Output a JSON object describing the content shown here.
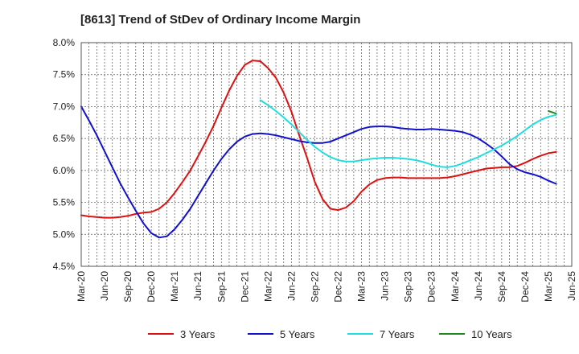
{
  "chart_data": {
    "type": "line",
    "title": "[8613]  Trend of StDev of Ordinary Income Margin",
    "xlabel": "",
    "ylabel": "",
    "x_ticks": [
      "Mar-20",
      "Jun-20",
      "Sep-20",
      "Dec-20",
      "Mar-21",
      "Jun-21",
      "Sep-21",
      "Dec-21",
      "Mar-22",
      "Jun-22",
      "Sep-22",
      "Dec-22",
      "Mar-23",
      "Jun-23",
      "Sep-23",
      "Dec-23",
      "Mar-24",
      "Jun-24",
      "Sep-24",
      "Dec-24",
      "Mar-25",
      "Jun-25"
    ],
    "y_ticks": [
      "4.5%",
      "5.0%",
      "5.5%",
      "6.0%",
      "6.5%",
      "7.0%",
      "7.5%",
      "8.0%"
    ],
    "ylim": [
      4.5,
      8.0
    ],
    "grid": true,
    "legend_position": "bottom",
    "series": [
      {
        "name": "3 Years",
        "color": "#dd1111",
        "points": [
          [
            "Mar-20",
            5.3
          ],
          [
            "Apr-20",
            5.28
          ],
          [
            "May-20",
            5.27
          ],
          [
            "Jun-20",
            5.26
          ],
          [
            "Jul-20",
            5.26
          ],
          [
            "Aug-20",
            5.27
          ],
          [
            "Sep-20",
            5.29
          ],
          [
            "Oct-20",
            5.32
          ],
          [
            "Nov-20",
            5.34
          ],
          [
            "Dec-20",
            5.35
          ],
          [
            "Jan-21",
            5.4
          ],
          [
            "Feb-21",
            5.5
          ],
          [
            "Mar-21",
            5.65
          ],
          [
            "Apr-21",
            5.82
          ],
          [
            "May-21",
            6.0
          ],
          [
            "Jun-21",
            6.22
          ],
          [
            "Jul-21",
            6.45
          ],
          [
            "Aug-21",
            6.7
          ],
          [
            "Sep-21",
            6.98
          ],
          [
            "Oct-21",
            7.25
          ],
          [
            "Nov-21",
            7.48
          ],
          [
            "Dec-21",
            7.65
          ],
          [
            "Jan-22",
            7.72
          ],
          [
            "Feb-22",
            7.71
          ],
          [
            "Mar-22",
            7.6
          ],
          [
            "Apr-22",
            7.45
          ],
          [
            "May-22",
            7.22
          ],
          [
            "Jun-22",
            6.92
          ],
          [
            "Jul-22",
            6.55
          ],
          [
            "Aug-22",
            6.2
          ],
          [
            "Sep-22",
            5.82
          ],
          [
            "Oct-22",
            5.55
          ],
          [
            "Nov-22",
            5.4
          ],
          [
            "Dec-22",
            5.38
          ],
          [
            "Jan-23",
            5.42
          ],
          [
            "Feb-23",
            5.52
          ],
          [
            "Mar-23",
            5.67
          ],
          [
            "Apr-23",
            5.78
          ],
          [
            "May-23",
            5.85
          ],
          [
            "Jun-23",
            5.88
          ],
          [
            "Jul-23",
            5.89
          ],
          [
            "Aug-23",
            5.89
          ],
          [
            "Sep-23",
            5.88
          ],
          [
            "Oct-23",
            5.88
          ],
          [
            "Nov-23",
            5.88
          ],
          [
            "Dec-23",
            5.88
          ],
          [
            "Jan-24",
            5.88
          ],
          [
            "Feb-24",
            5.89
          ],
          [
            "Mar-24",
            5.91
          ],
          [
            "Apr-24",
            5.94
          ],
          [
            "May-24",
            5.97
          ],
          [
            "Jun-24",
            6.0
          ],
          [
            "Jul-24",
            6.03
          ],
          [
            "Aug-24",
            6.04
          ],
          [
            "Sep-24",
            6.05
          ],
          [
            "Oct-24",
            6.05
          ],
          [
            "Nov-24",
            6.07
          ],
          [
            "Dec-24",
            6.12
          ],
          [
            "Jan-25",
            6.18
          ],
          [
            "Feb-25",
            6.23
          ],
          [
            "Mar-25",
            6.27
          ],
          [
            "Apr-25",
            6.29
          ]
        ]
      },
      {
        "name": "5 Years",
        "color": "#1111cc",
        "points": [
          [
            "Mar-20",
            7.0
          ],
          [
            "Apr-20",
            6.78
          ],
          [
            "May-20",
            6.55
          ],
          [
            "Jun-20",
            6.3
          ],
          [
            "Jul-20",
            6.05
          ],
          [
            "Aug-20",
            5.8
          ],
          [
            "Sep-20",
            5.58
          ],
          [
            "Oct-20",
            5.37
          ],
          [
            "Nov-20",
            5.17
          ],
          [
            "Dec-20",
            5.02
          ],
          [
            "Jan-21",
            4.95
          ],
          [
            "Feb-21",
            4.97
          ],
          [
            "Mar-21",
            5.08
          ],
          [
            "Apr-21",
            5.23
          ],
          [
            "May-21",
            5.4
          ],
          [
            "Jun-21",
            5.6
          ],
          [
            "Jul-21",
            5.8
          ],
          [
            "Aug-21",
            6.0
          ],
          [
            "Sep-21",
            6.18
          ],
          [
            "Oct-21",
            6.33
          ],
          [
            "Nov-21",
            6.45
          ],
          [
            "Dec-21",
            6.53
          ],
          [
            "Jan-22",
            6.57
          ],
          [
            "Feb-22",
            6.58
          ],
          [
            "Mar-22",
            6.57
          ],
          [
            "Apr-22",
            6.55
          ],
          [
            "May-22",
            6.52
          ],
          [
            "Jun-22",
            6.49
          ],
          [
            "Jul-22",
            6.46
          ],
          [
            "Aug-22",
            6.44
          ],
          [
            "Sep-22",
            6.43
          ],
          [
            "Oct-22",
            6.43
          ],
          [
            "Nov-22",
            6.45
          ],
          [
            "Dec-22",
            6.5
          ],
          [
            "Jan-23",
            6.55
          ],
          [
            "Feb-23",
            6.6
          ],
          [
            "Mar-23",
            6.65
          ],
          [
            "Apr-23",
            6.68
          ],
          [
            "May-23",
            6.69
          ],
          [
            "Jun-23",
            6.69
          ],
          [
            "Jul-23",
            6.68
          ],
          [
            "Aug-23",
            6.66
          ],
          [
            "Sep-23",
            6.65
          ],
          [
            "Oct-23",
            6.64
          ],
          [
            "Nov-23",
            6.64
          ],
          [
            "Dec-23",
            6.65
          ],
          [
            "Jan-24",
            6.64
          ],
          [
            "Feb-24",
            6.63
          ],
          [
            "Mar-24",
            6.62
          ],
          [
            "Apr-24",
            6.6
          ],
          [
            "May-24",
            6.56
          ],
          [
            "Jun-24",
            6.5
          ],
          [
            "Jul-24",
            6.42
          ],
          [
            "Aug-24",
            6.33
          ],
          [
            "Sep-24",
            6.22
          ],
          [
            "Oct-24",
            6.1
          ],
          [
            "Nov-24",
            6.02
          ],
          [
            "Dec-24",
            5.97
          ],
          [
            "Jan-25",
            5.94
          ],
          [
            "Feb-25",
            5.9
          ],
          [
            "Mar-25",
            5.84
          ],
          [
            "Apr-25",
            5.79
          ]
        ]
      },
      {
        "name": "7 Years",
        "color": "#22dddd",
        "points": [
          [
            "Feb-22",
            7.1
          ],
          [
            "Mar-22",
            7.02
          ],
          [
            "Apr-22",
            6.93
          ],
          [
            "May-22",
            6.83
          ],
          [
            "Jun-22",
            6.72
          ],
          [
            "Jul-22",
            6.6
          ],
          [
            "Aug-22",
            6.48
          ],
          [
            "Sep-22",
            6.37
          ],
          [
            "Oct-22",
            6.28
          ],
          [
            "Nov-22",
            6.21
          ],
          [
            "Dec-22",
            6.16
          ],
          [
            "Jan-23",
            6.14
          ],
          [
            "Feb-23",
            6.14
          ],
          [
            "Mar-23",
            6.16
          ],
          [
            "Apr-23",
            6.18
          ],
          [
            "May-23",
            6.19
          ],
          [
            "Jun-23",
            6.2
          ],
          [
            "Jul-23",
            6.2
          ],
          [
            "Aug-23",
            6.19
          ],
          [
            "Sep-23",
            6.18
          ],
          [
            "Oct-23",
            6.16
          ],
          [
            "Nov-23",
            6.13
          ],
          [
            "Dec-23",
            6.09
          ],
          [
            "Jan-24",
            6.06
          ],
          [
            "Feb-24",
            6.05
          ],
          [
            "Mar-24",
            6.07
          ],
          [
            "Apr-24",
            6.11
          ],
          [
            "May-24",
            6.16
          ],
          [
            "Jun-24",
            6.21
          ],
          [
            "Jul-24",
            6.27
          ],
          [
            "Aug-24",
            6.33
          ],
          [
            "Sep-24",
            6.39
          ],
          [
            "Oct-24",
            6.46
          ],
          [
            "Nov-24",
            6.54
          ],
          [
            "Dec-24",
            6.63
          ],
          [
            "Jan-25",
            6.72
          ],
          [
            "Feb-25",
            6.79
          ],
          [
            "Mar-25",
            6.84
          ],
          [
            "Apr-25",
            6.87
          ]
        ]
      },
      {
        "name": "10 Years",
        "color": "#228822",
        "points": [
          [
            "Mar-25",
            6.93
          ],
          [
            "Apr-25",
            6.89
          ]
        ]
      }
    ]
  }
}
